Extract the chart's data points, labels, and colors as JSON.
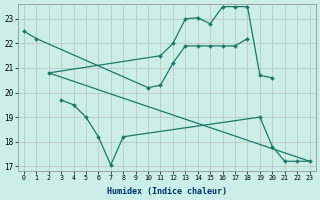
{
  "background_color": "#cceee8",
  "line_color": "#1a7a6a",
  "xlabel": "Humidex (Indice chaleur)",
  "ylim_low": 16.8,
  "ylim_high": 23.6,
  "xlim_low": -0.5,
  "xlim_high": 23.5,
  "yticks": [
    17,
    18,
    19,
    20,
    21,
    22,
    23
  ],
  "xticks": [
    0,
    1,
    2,
    3,
    4,
    5,
    6,
    7,
    8,
    9,
    10,
    11,
    12,
    13,
    14,
    15,
    16,
    17,
    18,
    19,
    20,
    21,
    22,
    23
  ],
  "series": [
    {
      "x": [
        0,
        1,
        10,
        11,
        12,
        13,
        14,
        15,
        16,
        17,
        18
      ],
      "y": [
        22.5,
        22.2,
        20.2,
        20.3,
        21.2,
        21.9,
        21.9,
        21.9,
        21.9,
        21.9,
        22.2
      ]
    },
    {
      "x": [
        2,
        11,
        12,
        13,
        14,
        15,
        16,
        17,
        18,
        19,
        20
      ],
      "y": [
        20.8,
        21.5,
        22.0,
        23.0,
        23.05,
        22.8,
        23.5,
        23.5,
        23.5,
        20.7,
        20.6
      ]
    },
    {
      "x": [
        3,
        4,
        5,
        6,
        7,
        8,
        19,
        20,
        21,
        22,
        23
      ],
      "y": [
        19.7,
        19.5,
        19.0,
        18.2,
        17.05,
        18.2,
        19.0,
        17.8,
        17.2,
        17.2,
        17.2
      ]
    },
    {
      "x": [
        2,
        23
      ],
      "y": [
        20.8,
        17.2
      ]
    }
  ]
}
